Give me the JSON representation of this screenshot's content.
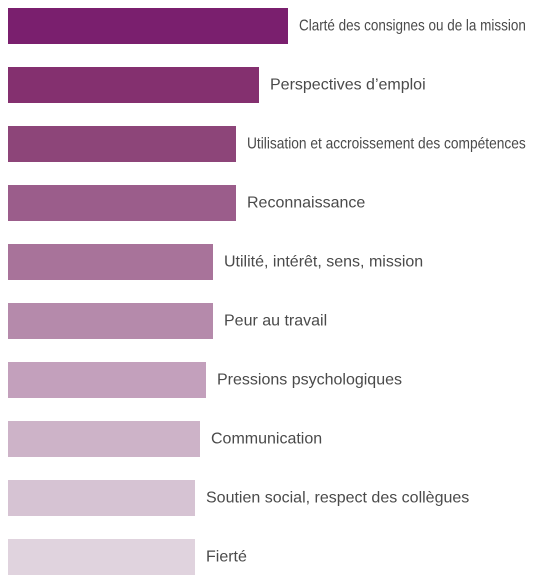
{
  "chart_data": {
    "type": "bar",
    "orientation": "horizontal",
    "title": "",
    "xlabel": "",
    "ylabel": "",
    "grid": false,
    "axes_visible": false,
    "categories": [
      "Clarté des consignes ou de la mission",
      "Perspectives d’emploi",
      "Utilisation et accroissement des compétences",
      "Reconnaissance",
      "Utilité, intérêt, sens, mission",
      "Peur au travail",
      "Pressions psychologiques",
      "Communication",
      "Soutien social, respect des collègues",
      "Fierté"
    ],
    "values": [
      280,
      251,
      228,
      228,
      205,
      205,
      198,
      192,
      187,
      187
    ],
    "xlim": [
      0,
      280
    ],
    "colors": [
      "#7a1f6e",
      "#84306f",
      "#8d4579",
      "#9b5d8b",
      "#a8739a",
      "#b58aab",
      "#c3a0bc",
      "#cdb3c8",
      "#d6c3d3",
      "#e0d3de"
    ]
  }
}
